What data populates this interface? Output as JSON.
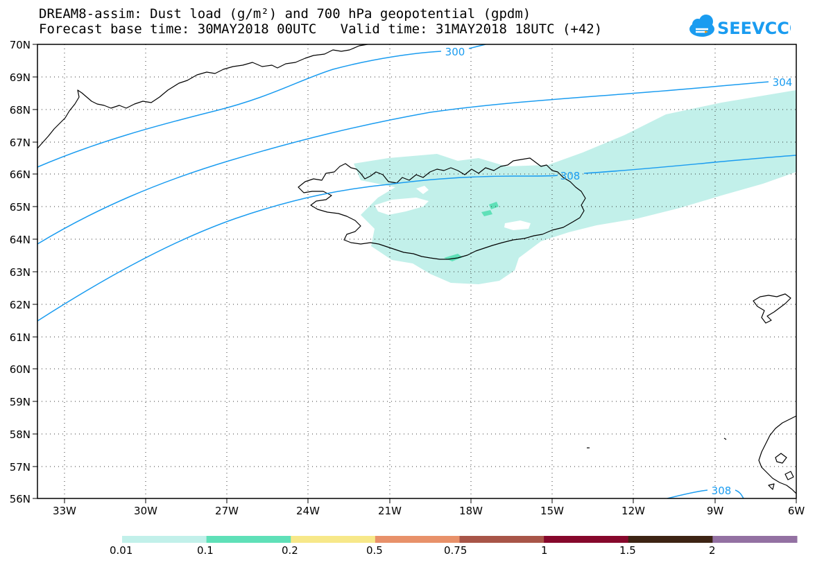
{
  "title": {
    "line1": "DREAM8-assim: Dust load (g/m²) and 700 hPa geopotential (gpdm)",
    "line2": "Forecast base time: 30MAY2018 00UTC   Valid time: 31MAY2018 18UTC (+42)"
  },
  "logo": {
    "text": "SEEVCCC",
    "color": "#1a9cf0",
    "icon": "cloud-icon"
  },
  "axes": {
    "lat_labels": [
      "70N",
      "69N",
      "68N",
      "67N",
      "66N",
      "65N",
      "64N",
      "63N",
      "62N",
      "61N",
      "60N",
      "59N",
      "58N",
      "57N",
      "56N"
    ],
    "lon_labels": [
      "33W",
      "30W",
      "27W",
      "24W",
      "21W",
      "18W",
      "15W",
      "12W",
      "9W",
      "6W"
    ]
  },
  "contours": {
    "color": "#1a9cf0",
    "labels": [
      "300",
      "304",
      "308",
      "308"
    ]
  },
  "colorbar": {
    "colors": [
      "#c2f0ea",
      "#5fe0b8",
      "#f7e889",
      "#e8916a",
      "#a85548",
      "#86082c",
      "#3d2414",
      "#9371a2"
    ],
    "labels": [
      "0.01",
      "0.1",
      "0.2",
      "0.5",
      "0.75",
      "1",
      "1.5",
      "2"
    ]
  },
  "dust": {
    "light_color": "#c2f0ea",
    "medium_color": "#5fe0b8"
  }
}
